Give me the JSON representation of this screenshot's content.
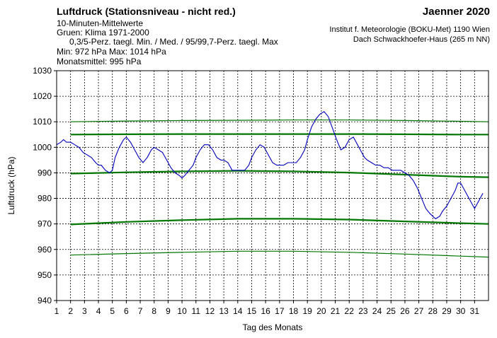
{
  "header": {
    "title": "Luftdruck (Stationsniveau - nicht red.)",
    "line2": "10-Minuten-Mittelwerte",
    "line3": "Gruen: Klima 1971-2000",
    "line4": "0,3/5-Perz. taegl. Min. / Med. / 95/99,7-Perz. taegl. Max",
    "line5": "Min:  972 hPa    Max: 1014 hPa",
    "line6": "Monatsmittel:  995 hPa",
    "month": "Jaenner 2020",
    "institute": "Institut f. Meteorologie (BOKU-Met) 1190 Wien",
    "location": "Dach Schwackhoefer-Haus (265 m NN)"
  },
  "colors": {
    "observed": "#0000bb",
    "climate": "#007700",
    "grid": "#000000"
  },
  "chart_data": {
    "type": "line",
    "xlabel": "Tag des Monats",
    "ylabel": "Luftdruck (hPa)",
    "xlim": [
      1,
      32
    ],
    "ylim": [
      940,
      1030
    ],
    "y_ticks": [
      940,
      950,
      960,
      970,
      980,
      990,
      1000,
      1010,
      1020,
      1030
    ],
    "x_ticks": [
      1,
      2,
      3,
      4,
      5,
      6,
      7,
      8,
      9,
      10,
      11,
      12,
      13,
      14,
      15,
      16,
      17,
      18,
      19,
      20,
      21,
      22,
      23,
      24,
      25,
      26,
      27,
      28,
      29,
      30,
      31
    ],
    "grid": true,
    "series": [
      {
        "role": "observed",
        "x": [
          1.0,
          1.3,
          1.5,
          1.7,
          2.0,
          2.3,
          2.6,
          2.9,
          3.2,
          3.5,
          3.8,
          4.0,
          4.2,
          4.5,
          4.8,
          5.0,
          5.2,
          5.5,
          5.8,
          6.0,
          6.3,
          6.6,
          6.9,
          7.2,
          7.5,
          7.8,
          8.0,
          8.3,
          8.6,
          8.9,
          9.2,
          9.5,
          9.8,
          10.0,
          10.2,
          10.5,
          10.8,
          11.0,
          11.3,
          11.6,
          11.9,
          12.2,
          12.5,
          12.8,
          13.0,
          13.3,
          13.6,
          13.9,
          14.2,
          14.5,
          14.8,
          15.0,
          15.3,
          15.6,
          15.9,
          16.2,
          16.5,
          16.8,
          17.0,
          17.3,
          17.6,
          17.9,
          18.2,
          18.5,
          18.8,
          19.0,
          19.3,
          19.6,
          19.9,
          20.2,
          20.5,
          20.7,
          20.9,
          21.1,
          21.4,
          21.7,
          22.0,
          22.3,
          22.6,
          22.9,
          23.1,
          23.3,
          23.6,
          23.9,
          24.2,
          24.5,
          24.8,
          25.1,
          25.4,
          25.7,
          26.0,
          26.3,
          26.6,
          26.9,
          27.2,
          27.5,
          27.8,
          28.0,
          28.2,
          28.5,
          28.7,
          29.0,
          29.3,
          29.6,
          29.8,
          30.0,
          30.2,
          30.5,
          30.8,
          31.0,
          31.3,
          31.6
        ],
        "y": [
          1001,
          1002,
          1003,
          1002,
          1002,
          1001,
          1000,
          998,
          997,
          996,
          994,
          993,
          993,
          991,
          990,
          991,
          996,
          1000,
          1003,
          1004,
          1002,
          999,
          996,
          994,
          996,
          999,
          1000,
          999,
          998,
          995,
          992,
          990,
          989,
          988,
          989,
          991,
          993,
          996,
          999,
          1001,
          1001,
          999,
          996,
          995,
          995,
          994,
          991,
          991,
          991,
          991,
          993,
          996,
          999,
          1001,
          1000,
          997,
          994,
          993,
          993,
          993,
          994,
          994,
          994,
          996,
          999,
          1003,
          1008,
          1011,
          1013,
          1014,
          1012,
          1009,
          1006,
          1003,
          999,
          1000,
          1003,
          1004,
          1001,
          998,
          996,
          995,
          994,
          993,
          993,
          992,
          992,
          991,
          991,
          991,
          990,
          989,
          987,
          984,
          980,
          976,
          974,
          973,
          972,
          973,
          975,
          977,
          980,
          983,
          986,
          986,
          984,
          981,
          978,
          976,
          979,
          982
        ]
      },
      {
        "role": "climate",
        "label": "99,7-Perz. taegl. Max",
        "x": [
          2,
          6,
          10,
          14,
          18,
          22,
          26,
          30,
          32
        ],
        "y": [
          1010,
          1010.3,
          1010.5,
          1010.6,
          1010.7,
          1010.7,
          1010.5,
          1010.2,
          1010
        ]
      },
      {
        "role": "climate",
        "label": "95-Perz. taegl. Max",
        "x": [
          2,
          6,
          10,
          14,
          18,
          22,
          26,
          30,
          32
        ],
        "y": [
          1005,
          1005.1,
          1005.2,
          1005.2,
          1005.2,
          1005.2,
          1005.1,
          1005,
          1005
        ]
      },
      {
        "role": "climate",
        "label": "Med.",
        "x": [
          2,
          6,
          10,
          14,
          18,
          22,
          26,
          30,
          32
        ],
        "y": [
          989.7,
          990.2,
          990.6,
          990.8,
          990.6,
          990.1,
          989.3,
          988.5,
          988.3
        ]
      },
      {
        "role": "climate",
        "label": "5-Perz. taegl. Min.",
        "x": [
          2,
          6,
          10,
          14,
          18,
          22,
          26,
          30,
          32
        ],
        "y": [
          969.8,
          970.8,
          971.5,
          972,
          972,
          971.7,
          971,
          970.3,
          970
        ]
      },
      {
        "role": "climate",
        "label": "0,3-Perz. taegl. Min.",
        "x": [
          2,
          6,
          10,
          14,
          18,
          22,
          26,
          30,
          32
        ],
        "y": [
          957.8,
          958.4,
          958.9,
          959.3,
          959.3,
          958.9,
          958.2,
          957.4,
          957
        ]
      }
    ]
  }
}
